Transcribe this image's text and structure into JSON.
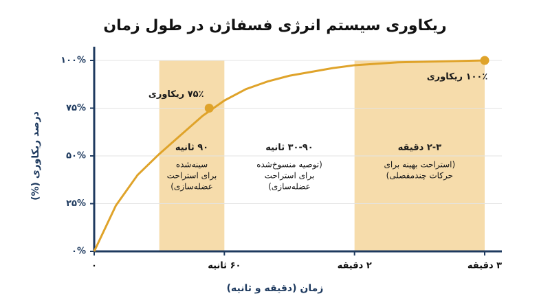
{
  "chart_data": {
    "type": "line",
    "title": "ریکاوری سیستم انرژی فسفاژن در طول زمان",
    "x_label": "زمان (دقیقه و ثانیه)",
    "y_label": "درصد ریکاوری (%)",
    "xlim": [
      0,
      180
    ],
    "ylim": [
      0,
      100
    ],
    "xticks": [
      {
        "value": 0,
        "label": "۰"
      },
      {
        "value": 60,
        "label": "۶۰ ثانیه"
      },
      {
        "value": 120,
        "label": "۲ دقیقه"
      },
      {
        "value": 180,
        "label": "۳ دقیقه"
      }
    ],
    "yticks": [
      {
        "value": 0,
        "label": "۰%"
      },
      {
        "value": 25,
        "label": "۲۵%"
      },
      {
        "value": 50,
        "label": "۵۰%"
      },
      {
        "value": 75,
        "label": "۷۵%"
      },
      {
        "value": 100,
        "label": "۱۰۰%"
      }
    ],
    "grid": true,
    "series": [
      {
        "color": "#dfa32a",
        "x": [
          0,
          10,
          20,
          30,
          40,
          50,
          60,
          70,
          80,
          90,
          110,
          120,
          140,
          160,
          180
        ],
        "values": [
          0,
          24,
          40,
          51,
          61,
          71,
          79,
          85,
          89,
          92,
          96,
          97.5,
          99,
          99.5,
          100
        ]
      }
    ],
    "points": [
      {
        "x": 53,
        "value": 75,
        "label": "۷۵٪ ریکاوری"
      },
      {
        "x": 180,
        "value": 100,
        "label": "۱۰۰٪ ریکاوری"
      }
    ],
    "regions": [
      {
        "start": 30,
        "end": 60,
        "shaded": true,
        "color": "#f6dcab",
        "title": "۹۰ ثانیه",
        "lines": [
          "سینه‌شده",
          "برای استراحت",
          "عضله‌سازی)"
        ]
      },
      {
        "start": 60,
        "end": 120,
        "shaded": false,
        "title": "۳۰-۹۰ ثانیه",
        "lines": [
          "(توصیه منسوخ‌شده",
          "برای استراحت",
          "عضله‌سازی)"
        ]
      },
      {
        "start": 120,
        "end": 180,
        "shaded": true,
        "color": "#f6dcab",
        "title": "۲-۳ دقیقه",
        "lines": [
          "(استراحت بهینه برای",
          "حرکات چندمفصلی)"
        ]
      }
    ]
  }
}
